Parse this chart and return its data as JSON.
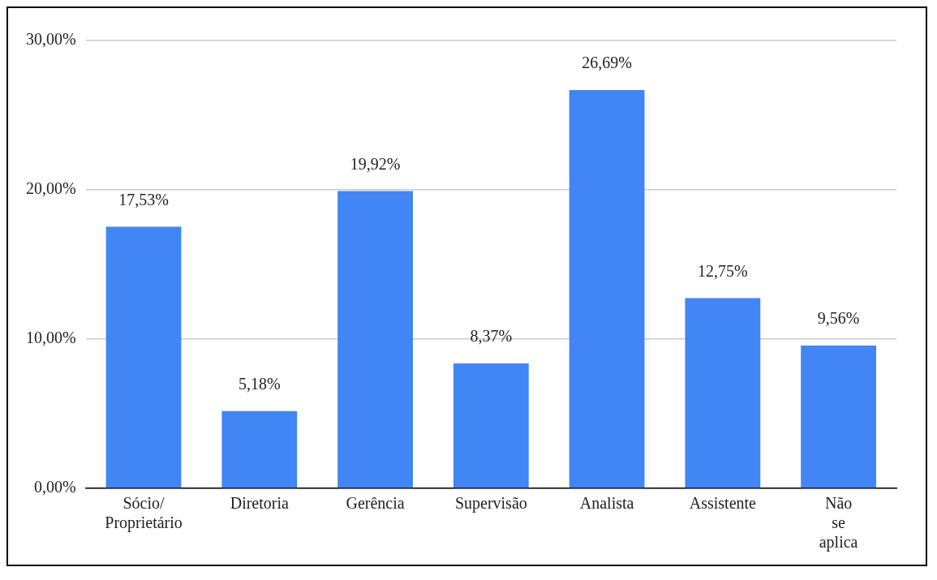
{
  "chart_data": {
    "type": "bar",
    "categories": [
      "Sócio/ Proprietário",
      "Diretoria",
      "Gerência",
      "Supervisão",
      "Analista",
      "Assistente",
      "Não se aplica"
    ],
    "values": [
      17.53,
      5.18,
      19.92,
      8.37,
      26.69,
      12.75,
      9.56
    ],
    "value_labels": [
      "17,53%",
      "5,18%",
      "19,92%",
      "8,37%",
      "26,69%",
      "12,75%",
      "9,56%"
    ],
    "color": "#4285f4",
    "ylim": [
      0,
      30
    ],
    "yticks": [
      {
        "value": 0,
        "label": "0,00%"
      },
      {
        "value": 10,
        "label": "10,00%"
      },
      {
        "value": 20,
        "label": "20,00%"
      },
      {
        "value": 30,
        "label": "30,00%"
      }
    ],
    "grid": "y",
    "legend": false
  }
}
